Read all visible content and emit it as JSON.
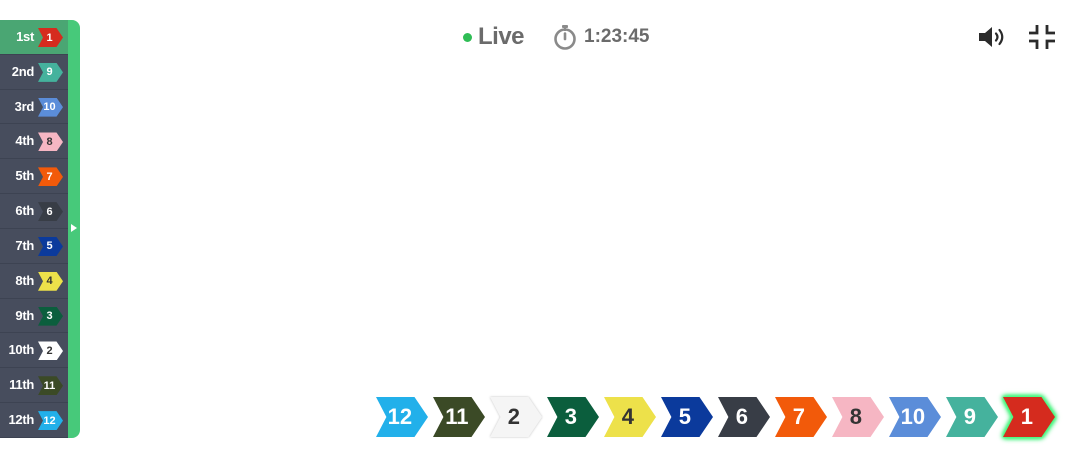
{
  "status": {
    "live_label": "Live",
    "live_color": "#2fbd55",
    "timer": "1:23:45"
  },
  "controls": {
    "volume_icon": "speaker-volume-icon",
    "fullscreen_icon": "exit-fullscreen-icon"
  },
  "standings": [
    {
      "position": "1st",
      "number": "1",
      "bg": "#d52b1e",
      "fg": "#ffffff"
    },
    {
      "position": "2nd",
      "number": "9",
      "bg": "#45b29d",
      "fg": "#ffffff"
    },
    {
      "position": "3rd",
      "number": "10",
      "bg": "#5b8dd9",
      "fg": "#ffffff"
    },
    {
      "position": "4th",
      "number": "8",
      "bg": "#f6b6c3",
      "fg": "#333333"
    },
    {
      "position": "5th",
      "number": "7",
      "bg": "#f25a0a",
      "fg": "#ffffff"
    },
    {
      "position": "6th",
      "number": "6",
      "bg": "#383d46",
      "fg": "#ffffff"
    },
    {
      "position": "7th",
      "number": "5",
      "bg": "#0b3a9c",
      "fg": "#ffffff"
    },
    {
      "position": "8th",
      "number": "4",
      "bg": "#ede14a",
      "fg": "#333333"
    },
    {
      "position": "9th",
      "number": "3",
      "bg": "#0b5e3d",
      "fg": "#ffffff"
    },
    {
      "position": "10th",
      "number": "2",
      "bg": "#f5f5f5",
      "fg": "#333333"
    },
    {
      "position": "11th",
      "number": "11",
      "bg": "#3b4a26",
      "fg": "#ffffff"
    },
    {
      "position": "12th",
      "number": "12",
      "bg": "#22b0ea",
      "fg": "#ffffff"
    }
  ],
  "track": [
    {
      "number": "12",
      "bg": "#22b0ea",
      "fg": "#ffffff"
    },
    {
      "number": "11",
      "bg": "#3b4a26",
      "fg": "#ffffff"
    },
    {
      "number": "2",
      "bg": "#f5f5f5",
      "fg": "#333333"
    },
    {
      "number": "3",
      "bg": "#0b5e3d",
      "fg": "#ffffff"
    },
    {
      "number": "4",
      "bg": "#ede14a",
      "fg": "#333333"
    },
    {
      "number": "5",
      "bg": "#0b3a9c",
      "fg": "#ffffff"
    },
    {
      "number": "6",
      "bg": "#383d46",
      "fg": "#ffffff"
    },
    {
      "number": "7",
      "bg": "#f25a0a",
      "fg": "#ffffff"
    },
    {
      "number": "8",
      "bg": "#f6b6c3",
      "fg": "#333333"
    },
    {
      "number": "10",
      "bg": "#5b8dd9",
      "fg": "#ffffff"
    },
    {
      "number": "9",
      "bg": "#45b29d",
      "fg": "#ffffff"
    },
    {
      "number": "1",
      "bg": "#d52b1e",
      "fg": "#ffffff",
      "leader": true
    }
  ]
}
